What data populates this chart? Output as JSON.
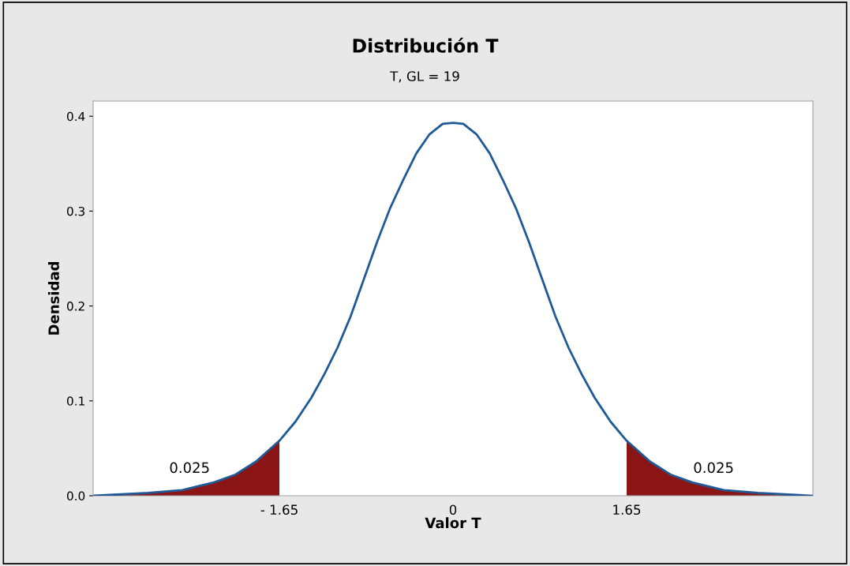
{
  "chart_data": {
    "type": "line",
    "title": "Distribución T",
    "subtitle": "T, GL = 19",
    "xlabel": "Valor T",
    "ylabel": "Densidad",
    "xlim": [
      -3.42,
      3.42
    ],
    "ylim": [
      0,
      0.416
    ],
    "xticks": [
      {
        "value": -1.65,
        "label": "- 1.65"
      },
      0,
      {
        "value": 1.65,
        "label": "1.65"
      }
    ],
    "yticks": [
      {
        "value": 0,
        "label": "0.0"
      },
      0.1,
      0.2,
      0.3,
      0.4
    ],
    "grid": false,
    "legend": false,
    "marker": "none",
    "line_style": "solid",
    "series": [
      {
        "type": "area",
        "color": "#8b1414",
        "x": [
          -3.411,
          -2.898,
          -2.573,
          -2.273,
          -2.073,
          -1.873,
          -1.65
        ],
        "values": [
          0,
          0.003,
          0.006,
          0.014,
          0.022,
          0.036,
          0.058
        ]
      },
      {
        "type": "area",
        "color": "#8b1414",
        "x": [
          1.65,
          1.873,
          2.073,
          2.273,
          2.573,
          2.898,
          3.411
        ],
        "values": [
          0.058,
          0.036,
          0.022,
          0.014,
          0.006,
          0.003,
          0
        ]
      },
      {
        "color": "#1f5a96",
        "x": [
          -3.411,
          -2.898,
          -2.573,
          -2.273,
          -2.073,
          -1.873,
          -1.65,
          -1.498,
          -1.348,
          -1.223,
          -1.098,
          -0.973,
          -0.848,
          -0.723,
          -0.598,
          -0.473,
          -0.348,
          -0.223,
          -0.098,
          0,
          0.098,
          0.223,
          0.348,
          0.473,
          0.598,
          0.723,
          0.848,
          0.973,
          1.098,
          1.223,
          1.348,
          1.498,
          1.65,
          1.873,
          2.073,
          2.273,
          2.573,
          2.898,
          3.411
        ],
        "values": [
          0,
          0.003,
          0.006,
          0.014,
          0.022,
          0.036,
          0.058,
          0.078,
          0.103,
          0.128,
          0.156,
          0.189,
          0.228,
          0.267,
          0.303,
          0.333,
          0.361,
          0.381,
          0.392,
          0.393,
          0.392,
          0.381,
          0.361,
          0.333,
          0.303,
          0.267,
          0.228,
          0.189,
          0.156,
          0.128,
          0.103,
          0.078,
          0.058,
          0.036,
          0.022,
          0.014,
          0.006,
          0.003,
          0
        ]
      }
    ],
    "annotations": [
      "0.025",
      "0.025"
    ]
  }
}
